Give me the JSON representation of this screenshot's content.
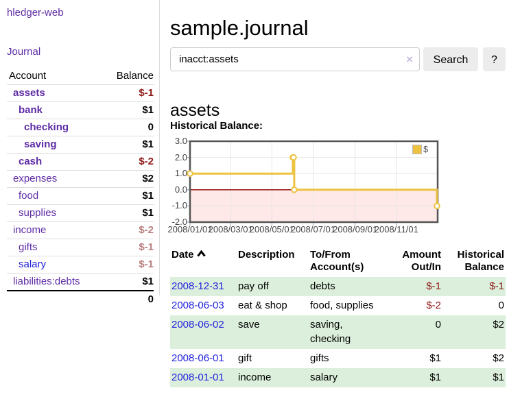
{
  "app": {
    "title": "hledger-web"
  },
  "sidebar": {
    "journal_link": "Journal",
    "headers": {
      "account": "Account",
      "balance": "Balance"
    },
    "rows": [
      {
        "account": "assets",
        "balance": "$-1"
      },
      {
        "account": "bank",
        "balance": "$1"
      },
      {
        "account": "checking",
        "balance": "0"
      },
      {
        "account": "saving",
        "balance": "$1"
      },
      {
        "account": "cash",
        "balance": "$-2"
      },
      {
        "account": "expenses",
        "balance": "$2"
      },
      {
        "account": "food",
        "balance": "$1"
      },
      {
        "account": "supplies",
        "balance": "$1"
      },
      {
        "account": "income",
        "balance": "$-2"
      },
      {
        "account": "gifts",
        "balance": "$-1"
      },
      {
        "account": "salary",
        "balance": "$-1"
      },
      {
        "account": "liabilities:debts",
        "balance": "$1"
      }
    ],
    "total": "0"
  },
  "header": {
    "title": "sample.journal"
  },
  "search": {
    "value": "inacct:assets",
    "clear_icon": "×",
    "button_label": "Search",
    "help_label": "?"
  },
  "account_page": {
    "title": "assets",
    "chart_label": "Historical Balance:"
  },
  "chart_data": {
    "type": "line",
    "style": "step",
    "title": "Historical Balance:",
    "series": [
      {
        "name": "$",
        "color": "#edc240",
        "points": [
          [
            "2008-01-01",
            1
          ],
          [
            "2008-06-01",
            2
          ],
          [
            "2008-06-02",
            2
          ],
          [
            "2008-06-03",
            0
          ],
          [
            "2008-12-31",
            -1
          ]
        ]
      }
    ],
    "xlim": [
      "2008-01-01",
      "2009-01-01"
    ],
    "ylim": [
      -2,
      3
    ],
    "xticks": [
      {
        "date": "2008-01-01",
        "label": "2008/01/01"
      },
      {
        "date": "2008-03-01",
        "label": "2008/03/01"
      },
      {
        "date": "2008-05-01",
        "label": "2008/05/01"
      },
      {
        "date": "2008-07-01",
        "label": "2008/07/01"
      },
      {
        "date": "2008-09-01",
        "label": "2008/09/01"
      },
      {
        "date": "2008-11-01",
        "label": "2008/11/01"
      }
    ],
    "yticks": [
      {
        "v": 3,
        "label": "3.0"
      },
      {
        "v": 2,
        "label": "2.0"
      },
      {
        "v": 1,
        "label": "1.0"
      },
      {
        "v": 0,
        "label": "0.0"
      },
      {
        "v": -1,
        "label": "-1.0"
      },
      {
        "v": -2,
        "label": "-2.0"
      }
    ],
    "legend": {
      "label": "$",
      "position": "top-right"
    },
    "grid": true,
    "colors": {
      "line": "#edc240",
      "border": "#545454",
      "gridline": "#e6e6e6",
      "tick": "#93a1c0",
      "zero_line": "#8b0000",
      "negative_region_fill": "rgba(255,0,0,0.09)"
    }
  },
  "transactions": {
    "headers": {
      "date": "Date",
      "description": "Description",
      "tofrom": "To/From Account(s)",
      "amount": "Amount Out/In",
      "balance": "Historical Balance"
    },
    "rows": [
      {
        "date": "2008-12-31",
        "description": "pay off",
        "accounts": "debts",
        "amount": "$-1",
        "balance": "$-1"
      },
      {
        "date": "2008-06-03",
        "description": "eat & shop",
        "accounts": "food, supplies",
        "amount": "$-2",
        "balance": "0"
      },
      {
        "date": "2008-06-02",
        "description": "save",
        "accounts": "saving, checking",
        "amount": "0",
        "balance": "$2"
      },
      {
        "date": "2008-06-01",
        "description": "gift",
        "accounts": "gifts",
        "amount": "$1",
        "balance": "$2"
      },
      {
        "date": "2008-01-01",
        "description": "income",
        "accounts": "salary",
        "amount": "$1",
        "balance": "$1"
      }
    ]
  },
  "colors": {
    "link_purple": "#5e2ca5",
    "link_blue": "#2323dc",
    "negative_amount": "#8f1717",
    "muted_negative": "#b97f7f",
    "row_stripe_green": "#dcefdc",
    "chart_line_gold": "#edc240"
  }
}
